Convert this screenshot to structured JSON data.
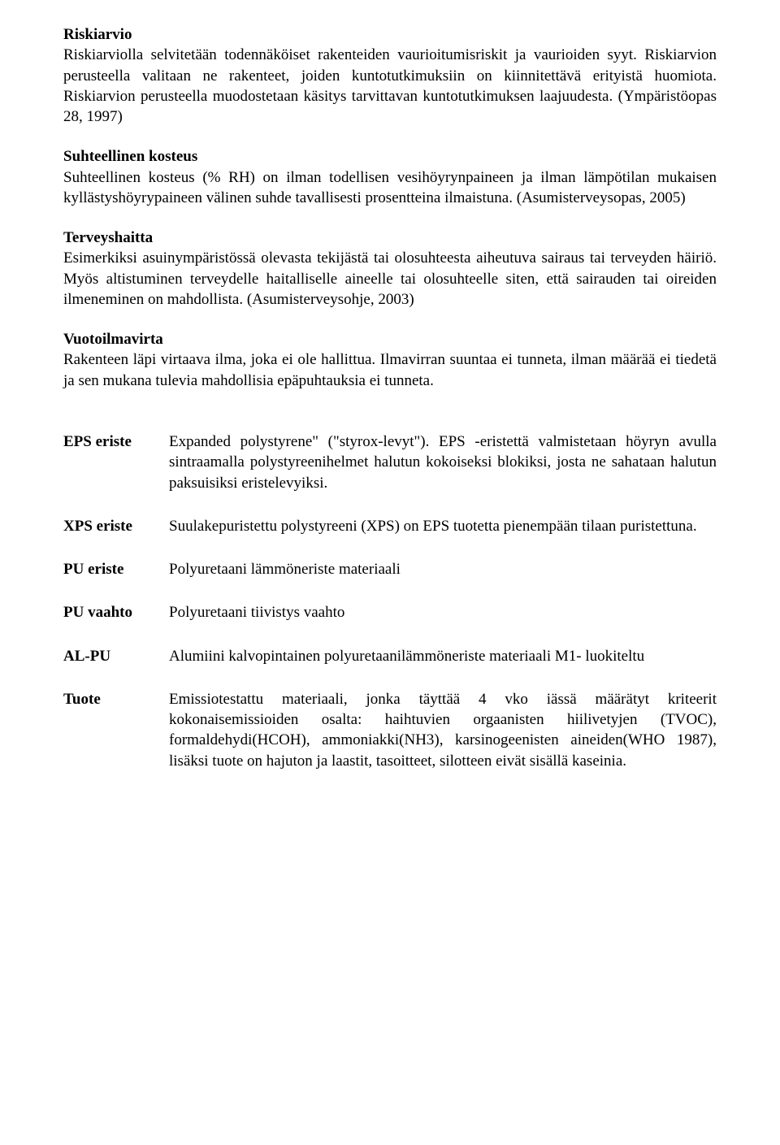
{
  "sections": [
    {
      "title": "Riskiarvio",
      "body": "Riskiarviolla selvitetään todennäköiset rakenteiden vaurioitumisriskit ja vaurioiden syyt. Riskiarvion perusteella valitaan ne rakenteet, joiden kuntotutkimuksiin on kiinnitettävä erityistä huomiota. Riskiarvion perusteella muodostetaan käsitys tarvittavan kuntotutkimuksen laajuudesta. (Ympäristöopas 28, 1997)"
    },
    {
      "title": "Suhteellinen kosteus",
      "body": "Suhteellinen kosteus (% RH) on ilman todellisen vesihöyrynpaineen ja ilman lämpötilan mukaisen kyllästyshöyrypaineen välinen suhde tavallisesti prosentteina ilmaistuna. (Asumisterveysopas, 2005)"
    },
    {
      "title": "Terveyshaitta",
      "body": "Esimerkiksi asuinympäristössä olevasta tekijästä tai olosuhteesta aiheutuva sairaus tai terveyden häiriö. Myös altistuminen terveydelle haitalliselle aineelle tai olosuhteelle siten, että sairauden tai oireiden ilmeneminen on mahdollista. (Asumisterveysohje, 2003)"
    },
    {
      "title": "Vuotoilmavirta",
      "body": "Rakenteen läpi virtaava ilma, joka ei ole hallittua. Ilmavirran suuntaa ei tunneta, ilman määrää ei tiedetä ja sen mukana tulevia mahdollisia epäpuhtauksia ei tunneta."
    }
  ],
  "definitions": [
    {
      "label": "EPS eriste",
      "text": "Expanded polystyrene\" (\"styrox-levyt\").  EPS -eristettä valmistetaan höyryn avulla sintraamalla polystyreenihelmet halutun kokoiseksi blokiksi, josta ne sahataan halutun paksuisiksi eristelevyiksi."
    },
    {
      "label": "XPS eriste",
      "text": "Suulakepuristettu polystyreeni (XPS) on EPS tuotetta pienempään tilaan puristettuna."
    },
    {
      "label": "PU eriste",
      "text": "Polyuretaani lämmöneriste materiaali"
    },
    {
      "label": "PU vaahto",
      "text": "Polyuretaani tiivistys vaahto"
    },
    {
      "label": "AL-PU",
      "text": "Alumiini kalvopintainen polyuretaanilämmöneriste materiaali M1- luokiteltu"
    },
    {
      "label": "Tuote",
      "text": "Emissiotestattu materiaali, jonka täyttää 4 vko iässä määrätyt kriteerit kokonaisemissioiden osalta: haihtuvien orgaanisten hiilivetyjen (TVOC), formaldehydi(HCOH), ammoniakki(NH3), karsinogeenisten aineiden(WHO 1987), lisäksi tuote on hajuton ja laastit, tasoitteet, silotteen eivät sisällä kaseinia."
    }
  ]
}
